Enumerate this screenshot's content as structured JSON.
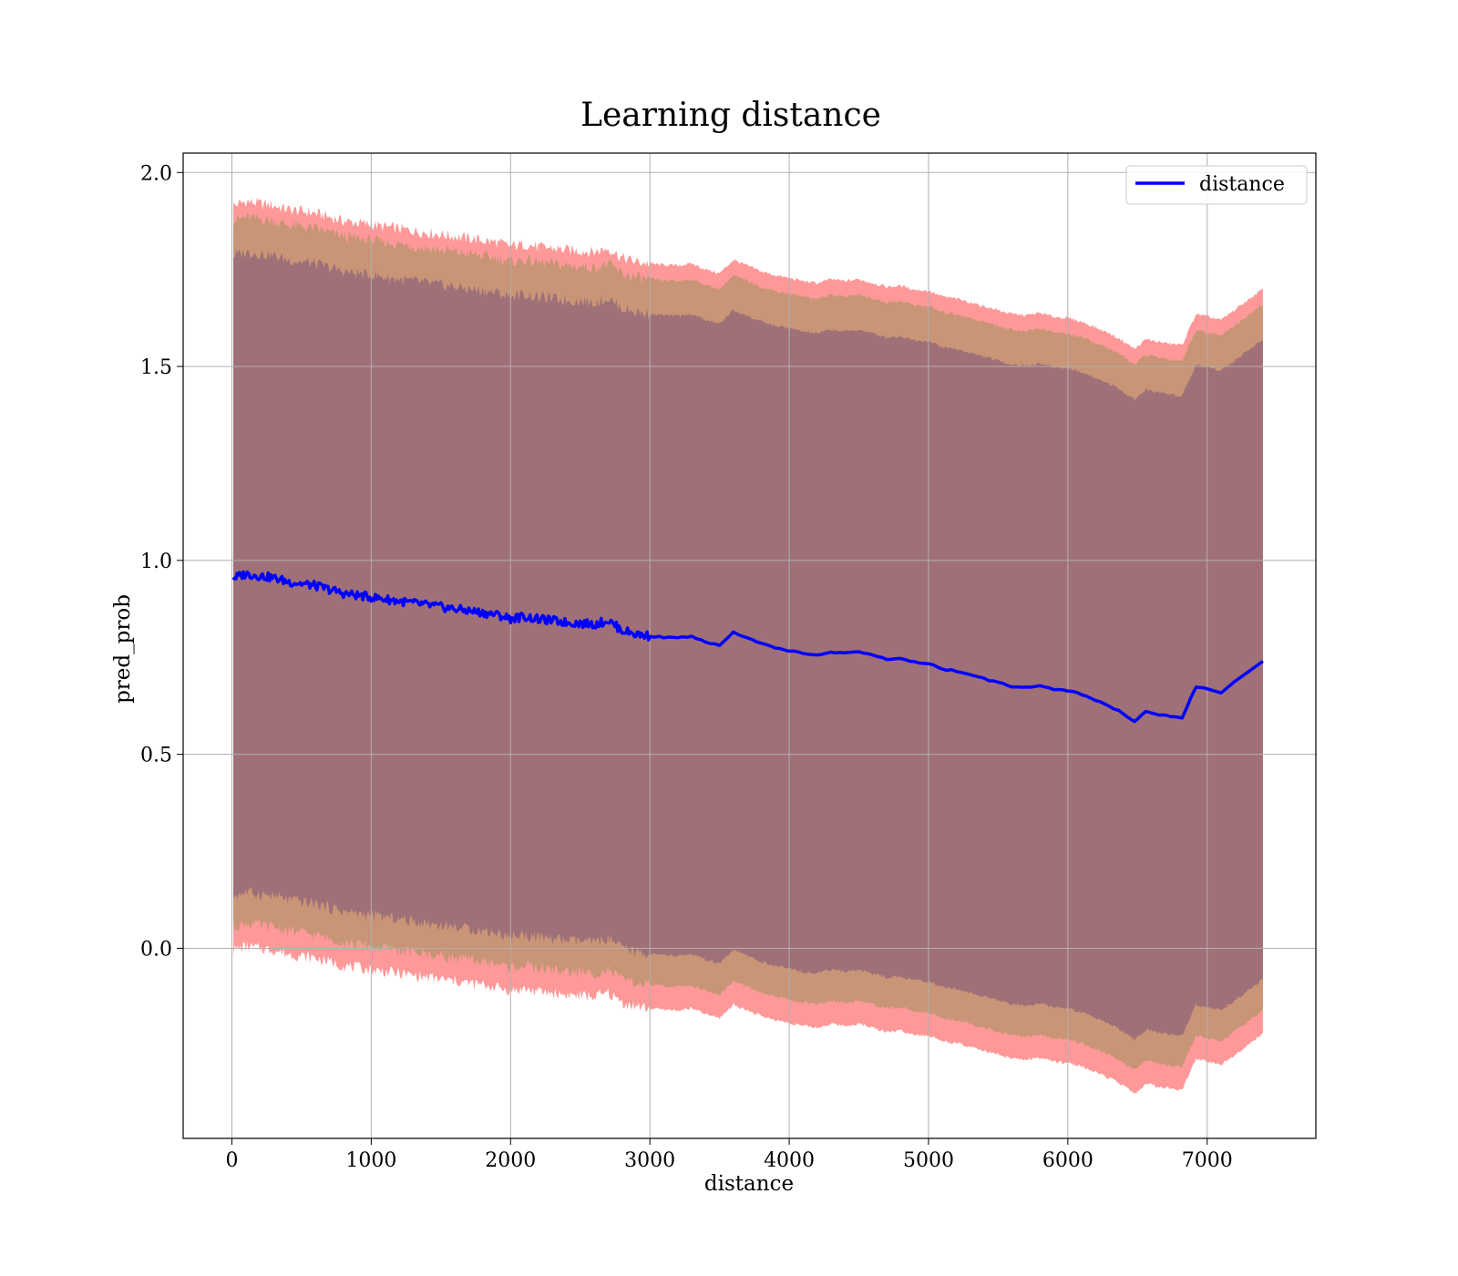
{
  "chart_data": {
    "type": "line",
    "title": "Learning distance",
    "xlabel": "distance",
    "ylabel": "pred_prob",
    "xlim": [
      -350,
      7780
    ],
    "ylim": [
      -0.49,
      2.05
    ],
    "xticks": [
      0,
      1000,
      2000,
      3000,
      4000,
      5000,
      6000,
      7000
    ],
    "yticks": [
      0.0,
      0.5,
      1.0,
      1.5,
      2.0
    ],
    "xtick_labels": [
      "0",
      "1000",
      "2000",
      "3000",
      "4000",
      "5000",
      "6000",
      "7000"
    ],
    "ytick_labels": [
      "0.0",
      "0.5",
      "1.0",
      "1.5",
      "2.0"
    ],
    "grid": true,
    "legend": {
      "position": "top-right",
      "entries": [
        "distance"
      ]
    },
    "colors": {
      "line": "#0000ff",
      "band_outer": "#ff9999",
      "band_middle": "#c89577",
      "band_inner": "#a07078"
    },
    "series": [
      {
        "name": "distance",
        "x": [
          10,
          100,
          200,
          300,
          400,
          500,
          600,
          700,
          800,
          900,
          1000,
          1100,
          1200,
          1300,
          1400,
          1500,
          1600,
          1700,
          1800,
          1900,
          2000,
          2100,
          2200,
          2300,
          2400,
          2500,
          2600,
          2700,
          2800,
          2900,
          3000,
          3100,
          3200,
          3300,
          3400,
          3500,
          3600,
          3700,
          3800,
          3900,
          4000,
          4100,
          4200,
          4300,
          4400,
          4500,
          4600,
          4700,
          4800,
          4900,
          5000,
          5100,
          5200,
          5300,
          5400,
          5500,
          5600,
          5700,
          5800,
          5900,
          6000,
          6100,
          6200,
          6300,
          6400,
          6480,
          6560,
          6700,
          6820,
          6920,
          7100,
          7400
        ],
        "y": [
          0.955,
          0.965,
          0.96,
          0.955,
          0.945,
          0.94,
          0.935,
          0.925,
          0.915,
          0.91,
          0.905,
          0.9,
          0.895,
          0.89,
          0.885,
          0.88,
          0.875,
          0.87,
          0.865,
          0.86,
          0.85,
          0.855,
          0.848,
          0.845,
          0.84,
          0.838,
          0.835,
          0.845,
          0.82,
          0.81,
          0.805,
          0.802,
          0.8,
          0.805,
          0.79,
          0.78,
          0.815,
          0.8,
          0.785,
          0.775,
          0.768,
          0.76,
          0.755,
          0.765,
          0.76,
          0.765,
          0.755,
          0.745,
          0.748,
          0.738,
          0.735,
          0.72,
          0.715,
          0.705,
          0.695,
          0.685,
          0.675,
          0.672,
          0.678,
          0.668,
          0.665,
          0.655,
          0.64,
          0.625,
          0.605,
          0.585,
          0.61,
          0.6,
          0.595,
          0.675,
          0.66,
          0.74
        ]
      }
    ],
    "bands": [
      {
        "name": "",
        "offset_upper": 0.96,
        "offset_lower": 0.96,
        "color": "#ff9999"
      },
      {
        "name": "",
        "offset_upper": 0.92,
        "offset_lower": 0.9,
        "color": "#c89577"
      },
      {
        "name": "",
        "offset_upper": 0.83,
        "offset_lower": 0.82,
        "color": "#a07078"
      }
    ]
  }
}
